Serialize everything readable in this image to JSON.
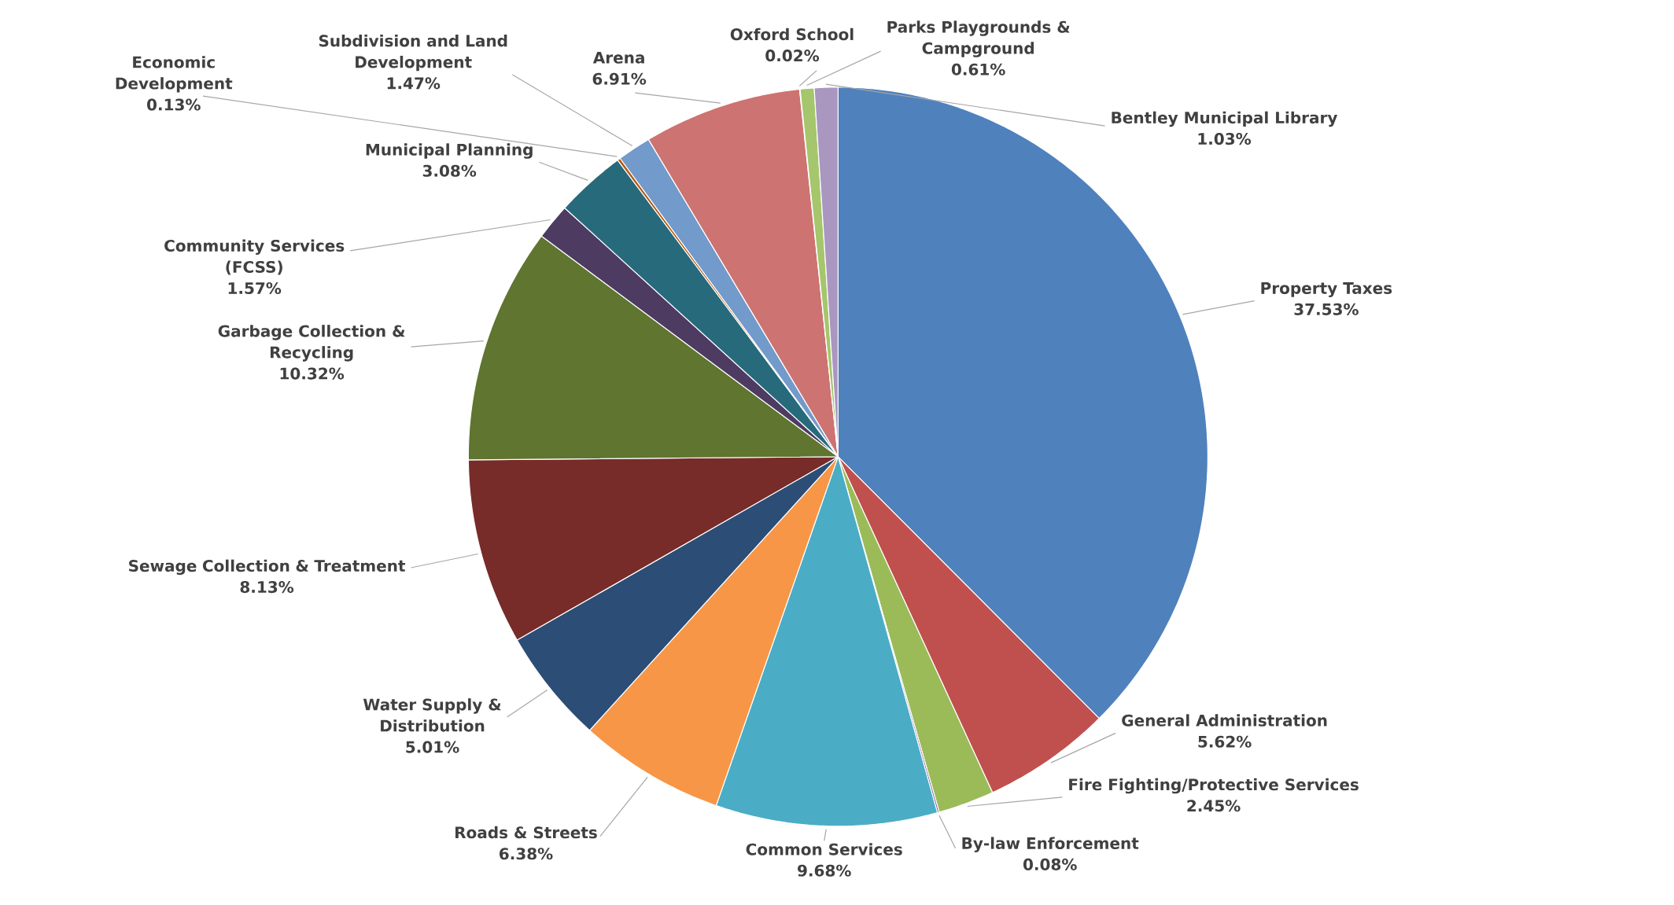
{
  "chart_data": {
    "type": "pie",
    "categories": [
      "Property Taxes",
      "General Administration",
      "Fire Fighting/Protective Services",
      "By-law Enforcement",
      "Common Services",
      "Roads & Streets",
      "Water Supply & Distribution",
      "Sewage Collection & Treatment",
      "Garbage Collection & Recycling",
      "Community Services (FCSS)",
      "Municipal Planning",
      "Economic Development",
      "Subdivision and Land Development",
      "Arena",
      "Oxford School",
      "Parks Playgrounds & Campground",
      "Bentley Municipal Library"
    ],
    "values": [
      37.53,
      5.62,
      2.45,
      0.08,
      9.68,
      6.38,
      5.01,
      8.13,
      10.32,
      1.57,
      3.08,
      0.13,
      1.47,
      6.91,
      0.02,
      0.61,
      1.03
    ],
    "value_labels": [
      "37.53%",
      "5.62%",
      "2.45%",
      "0.08%",
      "9.68%",
      "6.38%",
      "5.01%",
      "8.13%",
      "10.32%",
      "1.57%",
      "3.08%",
      "0.13%",
      "1.47%",
      "6.91%",
      "0.02%",
      "0.61%",
      "1.03%"
    ],
    "colors": [
      "#4f81bd",
      "#c0504d",
      "#9bbb59",
      "#8064a2",
      "#4bacc6",
      "#f79646",
      "#2c4d75",
      "#772c2a",
      "#5f7530",
      "#4d3b62",
      "#276a7c",
      "#b65708",
      "#729aca",
      "#cd7371",
      "#afc97a",
      "#a5c66c",
      "#a997c0"
    ]
  }
}
